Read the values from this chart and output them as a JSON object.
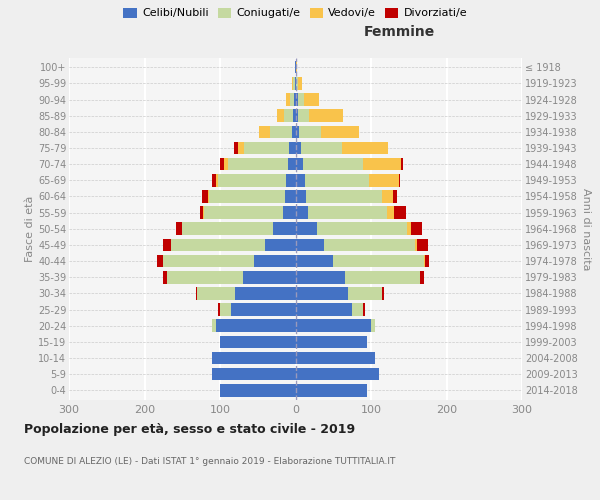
{
  "age_groups": [
    "0-4",
    "5-9",
    "10-14",
    "15-19",
    "20-24",
    "25-29",
    "30-34",
    "35-39",
    "40-44",
    "45-49",
    "50-54",
    "55-59",
    "60-64",
    "65-69",
    "70-74",
    "75-79",
    "80-84",
    "85-89",
    "90-94",
    "95-99",
    "100+"
  ],
  "birth_years": [
    "2014-2018",
    "2009-2013",
    "2004-2008",
    "1999-2003",
    "1994-1998",
    "1989-1993",
    "1984-1988",
    "1979-1983",
    "1974-1978",
    "1969-1973",
    "1964-1968",
    "1959-1963",
    "1954-1958",
    "1949-1953",
    "1944-1948",
    "1939-1943",
    "1934-1938",
    "1929-1933",
    "1924-1928",
    "1919-1923",
    "≤ 1918"
  ],
  "males": {
    "celibi": [
      100,
      110,
      110,
      100,
      105,
      85,
      80,
      70,
      55,
      40,
      30,
      16,
      14,
      12,
      10,
      8,
      4,
      3,
      2,
      1,
      1
    ],
    "coniugati": [
      0,
      0,
      0,
      0,
      5,
      15,
      50,
      100,
      120,
      125,
      120,
      105,
      100,
      90,
      80,
      60,
      30,
      12,
      5,
      2,
      0
    ],
    "vedovi": [
      0,
      0,
      0,
      0,
      0,
      0,
      0,
      0,
      0,
      0,
      0,
      1,
      2,
      3,
      5,
      8,
      15,
      10,
      5,
      2,
      0
    ],
    "divorziati": [
      0,
      0,
      0,
      0,
      0,
      2,
      2,
      5,
      8,
      10,
      8,
      5,
      8,
      5,
      5,
      5,
      0,
      0,
      0,
      0,
      0
    ]
  },
  "females": {
    "nubili": [
      95,
      110,
      105,
      95,
      100,
      75,
      70,
      65,
      50,
      38,
      28,
      16,
      14,
      12,
      10,
      7,
      4,
      3,
      3,
      1,
      1
    ],
    "coniugate": [
      0,
      0,
      0,
      0,
      5,
      15,
      45,
      100,
      120,
      120,
      120,
      105,
      100,
      85,
      80,
      55,
      30,
      15,
      8,
      2,
      0
    ],
    "vedove": [
      0,
      0,
      0,
      0,
      0,
      0,
      0,
      0,
      2,
      3,
      5,
      10,
      15,
      40,
      50,
      60,
      50,
      45,
      20,
      5,
      1
    ],
    "divorziate": [
      0,
      0,
      0,
      0,
      0,
      2,
      2,
      5,
      5,
      15,
      15,
      15,
      5,
      2,
      2,
      0,
      0,
      0,
      0,
      0,
      0
    ]
  },
  "colors": {
    "celibi": "#4472C4",
    "coniugati": "#c5d9a0",
    "vedovi": "#F9C34B",
    "divorziati": "#C00000"
  },
  "xlim": 300,
  "title": "Popolazione per età, sesso e stato civile - 2019",
  "subtitle": "COMUNE DI ALEZIO (LE) - Dati ISTAT 1° gennaio 2019 - Elaborazione TUTTITALIA.IT",
  "ylabel_left": "Fasce di età",
  "ylabel_right": "Anni di nascita",
  "xlabel_right": "Femmine",
  "bg_color": "#f5f5f5",
  "grid_color": "#ffffff",
  "dashed_color": "#9999bb"
}
